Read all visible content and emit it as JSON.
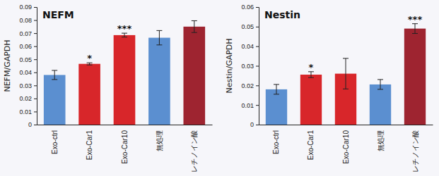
{
  "chart_data": [
    {
      "type": "bar",
      "title": "NEFM",
      "y_label": "NEFM/GAPDH",
      "categories": [
        "Exo-ctrl",
        "Exo-Car1",
        "Exo-Car10",
        "無処理",
        "レチノイン酸"
      ],
      "values": [
        0.038,
        0.0465,
        0.0685,
        0.0665,
        0.075
      ],
      "errors": [
        0.0035,
        0.0008,
        0.0015,
        0.0055,
        0.0045
      ],
      "significance": [
        null,
        "*",
        "***",
        null,
        null
      ],
      "colors": [
        "#5b8fd0",
        "#d8262a",
        "#d8262a",
        "#5b8fd0",
        "#9e2430"
      ],
      "ylim": [
        0,
        0.09
      ],
      "yticks": [
        0,
        0.01,
        0.02,
        0.03,
        0.04,
        0.05,
        0.06,
        0.07,
        0.08,
        0.09
      ],
      "grid": false
    },
    {
      "type": "bar",
      "title": "Nestin",
      "y_label": "Nestin/GAPDH",
      "categories": [
        "Exo-ctrl",
        "Exo-Car1",
        "Exo-Car10",
        "無処理",
        "レチノイン酸"
      ],
      "values": [
        0.018,
        0.0255,
        0.026,
        0.0205,
        0.049
      ],
      "errors": [
        0.0025,
        0.0015,
        0.0078,
        0.0025,
        0.0025
      ],
      "significance": [
        null,
        "*",
        null,
        null,
        "***"
      ],
      "colors": [
        "#5b8fd0",
        "#d8262a",
        "#d8262a",
        "#5b8fd0",
        "#9e2430"
      ],
      "ylim": [
        0,
        0.06
      ],
      "yticks": [
        0,
        0.01,
        0.02,
        0.03,
        0.04,
        0.05,
        0.06
      ],
      "grid": false
    }
  ]
}
